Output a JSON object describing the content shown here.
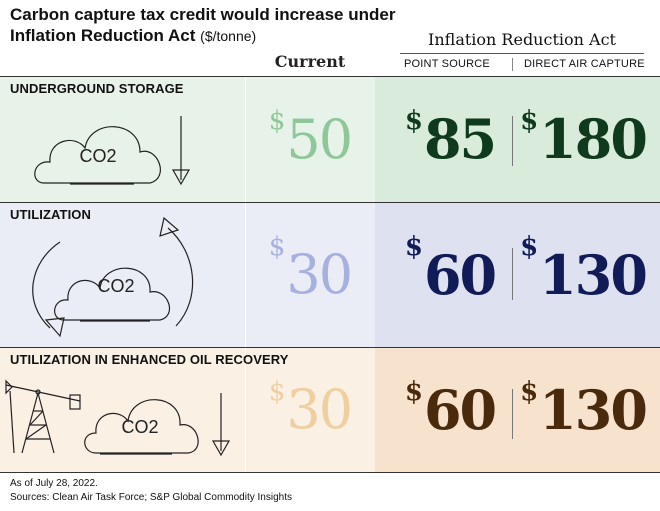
{
  "header": {
    "title": "Carbon capture tax credit would increase under Inflation Reduction Act",
    "unit": "($/tonne)",
    "current_label": "Current",
    "ira_label": "Inflation Reduction Act",
    "point_source_label": "POINT SOURCE",
    "dac_label": "DIRECT AIR CAPTURE"
  },
  "colors": {
    "storage_light": "#e7f3e9",
    "storage_mid": "#d9ecdc",
    "storage_text_current": "#8fc79a",
    "storage_text": "#0f3a1d",
    "utilization_light": "#ebedf6",
    "utilization_mid": "#dde1f0",
    "utilization_text_current": "#a7b1df",
    "utilization_text": "#101b57",
    "eor_light": "#fbf0e4",
    "eor_mid": "#f6e2cd",
    "eor_text_current": "#efcf9f",
    "eor_text": "#4a2a0c"
  },
  "icons": {
    "cloud_label": "CO2",
    "storage": [
      "cloud-icon",
      "down-arrow-icon"
    ],
    "utilization": [
      "cloud-icon",
      "cycle-arrows-icon"
    ],
    "eor": [
      "oil-pumpjack-icon",
      "cloud-icon",
      "down-arrow-icon"
    ]
  },
  "chart_data": {
    "type": "table",
    "title": "Carbon capture tax credit would increase under Inflation Reduction Act",
    "unit": "$/tonne",
    "columns": [
      "Current",
      "Inflation Reduction Act: POINT SOURCE",
      "Inflation Reduction Act: DIRECT AIR CAPTURE"
    ],
    "currency_symbol": "$",
    "rows": [
      {
        "label": "UNDERGROUND STORAGE",
        "current": 50,
        "point_source": 85,
        "direct_air_capture": 180
      },
      {
        "label": "UTILIZATION",
        "current": 30,
        "point_source": 60,
        "direct_air_capture": 130
      },
      {
        "label": "UTILIZATION IN ENHANCED OIL RECOVERY",
        "current": 30,
        "point_source": 60,
        "direct_air_capture": 130
      }
    ]
  },
  "footer": {
    "date_note": "As of July 28, 2022.",
    "sources": "Sources: Clean Air Task Force; S&P Global Commodity Insights"
  }
}
